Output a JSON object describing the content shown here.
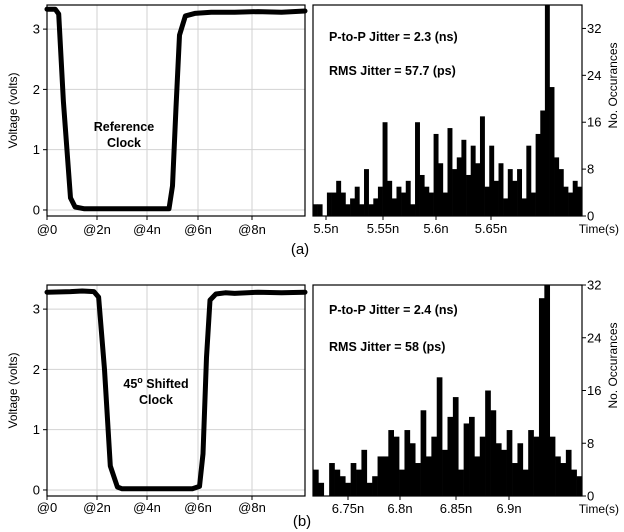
{
  "chart_data": [
    {
      "type": "line",
      "panel": "a",
      "ylabel": "Voltage (volts)",
      "yticks": [
        "0",
        "1",
        "2",
        "3"
      ],
      "ylim": [
        -0.1,
        3.4
      ],
      "xticks": [
        "@0",
        "@2n",
        "@4n",
        "@6n",
        "@8n"
      ],
      "xlim": [
        0,
        11
      ],
      "annotation": [
        "Reference",
        "Clock"
      ],
      "grid": true,
      "series": [
        {
          "x": [
            0,
            0.35,
            0.5,
            0.7,
            1.0,
            1.2,
            1.6,
            2.0,
            4.0,
            5.2,
            5.35,
            5.5,
            5.65,
            5.9,
            6.3,
            7.0,
            8.0,
            9.0,
            10.0,
            11.0
          ],
          "y": [
            3.33,
            3.33,
            3.25,
            1.8,
            0.2,
            0.05,
            0.02,
            0.02,
            0.02,
            0.02,
            0.4,
            1.7,
            2.9,
            3.22,
            3.26,
            3.28,
            3.28,
            3.29,
            3.28,
            3.3
          ]
        }
      ]
    },
    {
      "type": "bar",
      "panel": "a",
      "ylabel": "No. Occurances",
      "xlabel": "Time(s)",
      "yticks": [
        "0",
        "8",
        "16",
        "24",
        "32"
      ],
      "ylim": [
        0,
        36
      ],
      "xticks": [
        "5.5n",
        "5.55n",
        "5.6n",
        "5.65n"
      ],
      "xlim": [
        5.497,
        5.735
      ],
      "annotations": [
        "P-to-P Jitter = 2.3 (ns)",
        "RMS Jitter = 57.7 (ps)"
      ],
      "values": [
        2,
        2,
        0,
        4,
        4,
        6,
        4,
        2,
        3,
        5,
        2,
        8,
        2,
        3,
        5,
        16,
        6,
        3,
        5,
        4,
        6,
        2,
        16,
        7,
        5,
        4,
        14,
        9,
        4,
        15,
        8,
        10,
        13,
        7,
        12,
        9,
        17,
        5,
        12,
        6,
        9,
        3,
        8,
        6,
        8,
        3,
        12,
        4,
        14,
        18,
        36,
        22,
        10,
        8,
        5,
        4,
        6,
        5
      ]
    },
    {
      "type": "line",
      "panel": "b",
      "ylabel": "Voltage (volts)",
      "yticks": [
        "0",
        "1",
        "2",
        "3"
      ],
      "ylim": [
        -0.1,
        3.4
      ],
      "xticks": [
        "@0",
        "@2n",
        "@4n",
        "@6n",
        "@8n"
      ],
      "xlim": [
        0,
        11
      ],
      "annotation": [
        "45° Shifted",
        "Clock"
      ],
      "grid": true,
      "series": [
        {
          "x": [
            0,
            1.0,
            1.5,
            2.0,
            2.2,
            2.45,
            2.7,
            3.0,
            3.2,
            4.0,
            5.0,
            6.2,
            6.5,
            6.65,
            6.8,
            6.95,
            7.2,
            7.6,
            8.0,
            9.0,
            10.0,
            11.0
          ],
          "y": [
            3.28,
            3.29,
            3.3,
            3.29,
            3.2,
            2.0,
            0.4,
            0.05,
            0.02,
            0.02,
            0.02,
            0.02,
            0.06,
            0.6,
            2.2,
            3.15,
            3.25,
            3.27,
            3.26,
            3.28,
            3.27,
            3.28
          ]
        }
      ]
    },
    {
      "type": "bar",
      "panel": "b",
      "ylabel": "No. Occurances",
      "xlabel": "Time(s)",
      "yticks": [
        "0",
        "8",
        "16",
        "24",
        "32"
      ],
      "ylim": [
        0,
        32
      ],
      "xticks": [
        "6.75n",
        "6.8n",
        "6.85n",
        "6.9n"
      ],
      "xlim": [
        6.715,
        6.945
      ],
      "annotations": [
        "P-to-P Jitter = 2.4 (ns)",
        "RMS Jitter = 58 (ps)"
      ],
      "values": [
        4,
        2,
        0,
        5,
        4,
        3,
        2,
        5,
        4,
        7,
        2,
        3,
        6,
        6,
        10,
        9,
        4,
        10,
        8,
        5,
        13,
        6,
        9,
        18,
        7,
        12,
        15,
        4,
        11,
        12,
        6,
        9,
        16,
        13,
        8,
        7,
        10,
        5,
        8,
        4,
        10,
        9,
        30,
        32,
        9,
        6,
        5,
        7,
        4,
        3
      ]
    }
  ],
  "panel_labels": [
    "(a)",
    "(b)"
  ]
}
